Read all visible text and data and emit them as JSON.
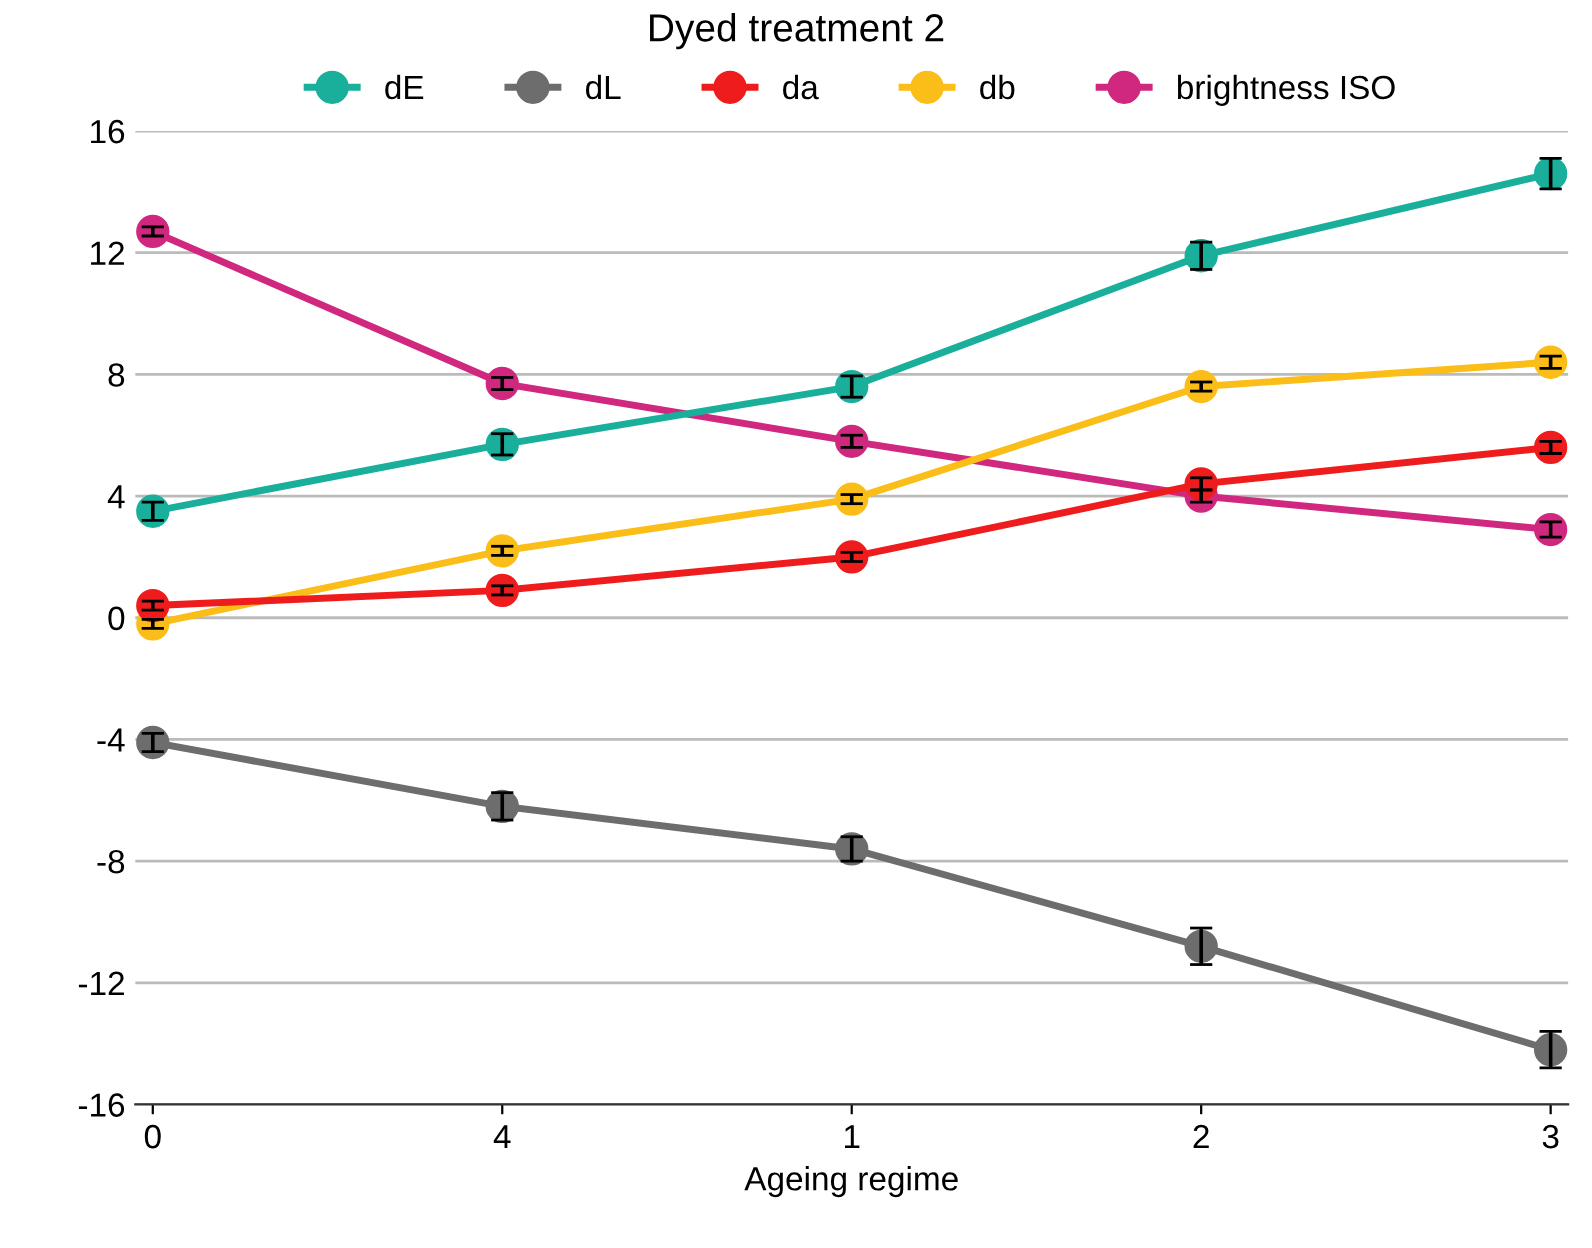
{
  "chart_data": {
    "type": "line",
    "title": "Dyed treatment 2",
    "xlabel": "Ageing regime",
    "categories": [
      "0",
      "4",
      "1",
      "2",
      "3"
    ],
    "ylim": [
      -16,
      16
    ],
    "yticks": [
      -16,
      -12,
      -8,
      -4,
      0,
      4,
      8,
      12,
      16
    ],
    "grid": "y",
    "legend": "top",
    "marker": "circle",
    "line_style": "solid",
    "series": [
      {
        "name": "dE",
        "color": "#1aaf9b",
        "values": [
          3.5,
          5.7,
          7.6,
          11.9,
          14.6
        ],
        "errors": [
          0.3,
          0.35,
          0.35,
          0.45,
          0.5
        ]
      },
      {
        "name": "dL",
        "color": "#6d6d6d",
        "values": [
          -4.1,
          -6.2,
          -7.6,
          -10.8,
          -14.2
        ],
        "errors": [
          0.3,
          0.45,
          0.4,
          0.6,
          0.6
        ]
      },
      {
        "name": "da",
        "color": "#ee1c1c",
        "values": [
          0.4,
          0.9,
          2.0,
          4.4,
          5.6
        ],
        "errors": [
          0.15,
          0.15,
          0.15,
          0.2,
          0.2
        ]
      },
      {
        "name": "db",
        "color": "#fbbd18",
        "values": [
          -0.2,
          2.2,
          3.9,
          7.6,
          8.4
        ],
        "errors": [
          0.15,
          0.15,
          0.15,
          0.15,
          0.2
        ]
      },
      {
        "name": "brightness ISO",
        "color": "#d0277f",
        "values": [
          12.7,
          7.7,
          5.8,
          4.0,
          2.9
        ],
        "errors": [
          0.15,
          0.2,
          0.2,
          0.2,
          0.25
        ]
      }
    ]
  }
}
